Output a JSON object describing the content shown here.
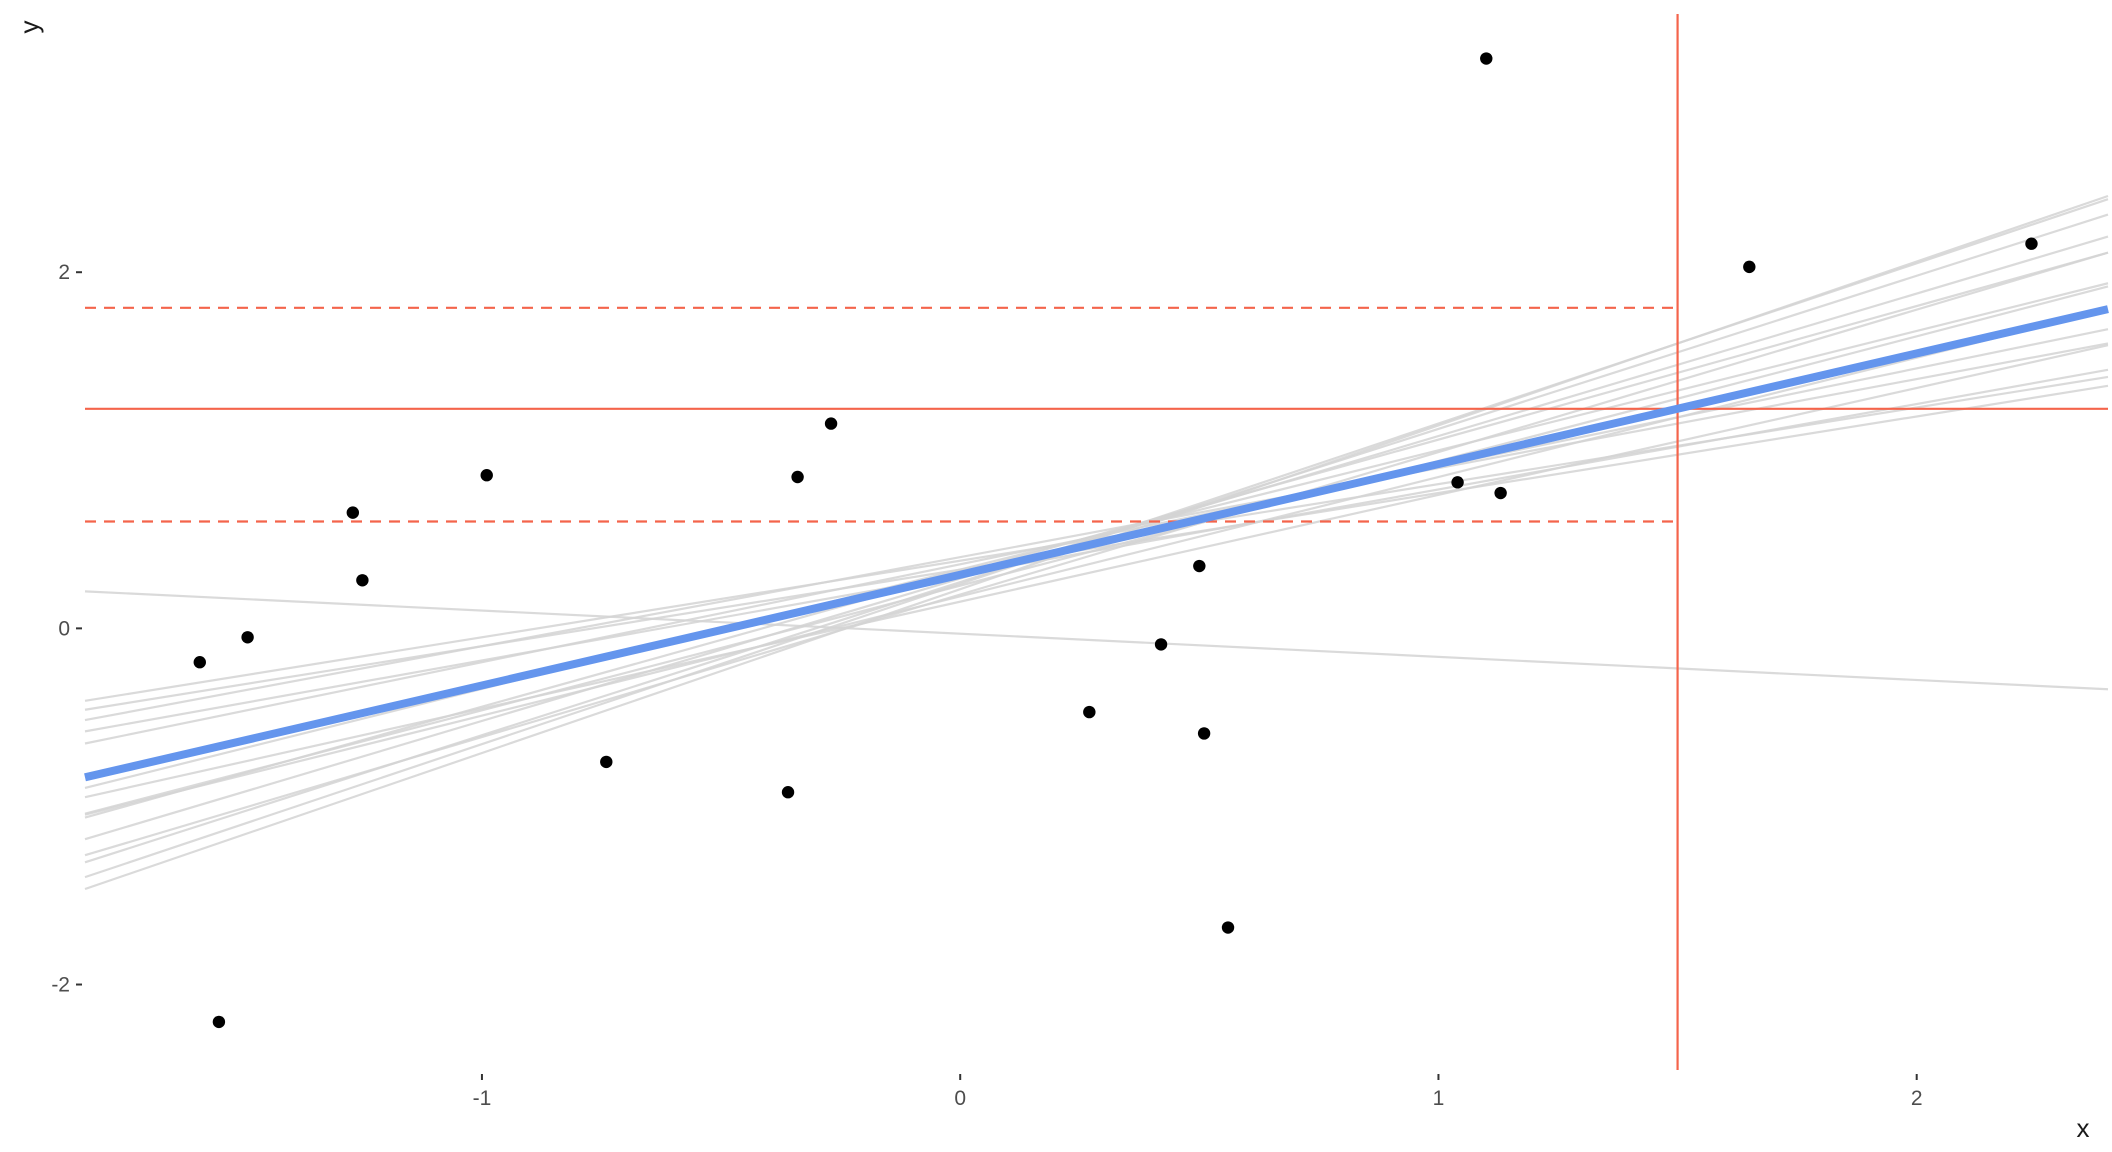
{
  "chart_data": {
    "type": "scatter",
    "title": "",
    "xlabel": "x",
    "ylabel": "y",
    "xlim": [
      -1.83,
      2.4
    ],
    "ylim": [
      -2.48,
      3.45
    ],
    "x_ticks": [
      -1,
      0,
      1,
      2
    ],
    "y_ticks": [
      -2,
      0,
      2
    ],
    "x_tick_labels": [
      "-1",
      "0",
      "1",
      "2"
    ],
    "y_tick_labels": [
      "-2",
      "0",
      "2"
    ],
    "grid": false,
    "legend": "none",
    "colors": {
      "points": "#000000",
      "fit_line": "#6495ed",
      "sample_lines": "#d3d3d3",
      "reference": "#f4644b",
      "tick_text": "#4d4d4d"
    },
    "points": {
      "x": [
        -1.59,
        -1.55,
        -1.49,
        -1.27,
        -1.25,
        -0.99,
        -0.74,
        -0.36,
        -0.34,
        -0.27,
        0.27,
        0.42,
        0.5,
        0.51,
        0.56,
        1.04,
        1.1,
        1.13,
        1.65,
        2.24
      ],
      "y": [
        -0.19,
        -2.21,
        -0.05,
        0.65,
        0.27,
        0.86,
        -0.75,
        -0.92,
        0.85,
        1.15,
        -0.47,
        -0.09,
        0.35,
        -0.59,
        -1.68,
        0.82,
        3.2,
        0.76,
        2.03,
        2.16
      ]
    },
    "fit_line": {
      "intercept": 0.301,
      "slope": 0.6215
    },
    "sample_lines": [
      {
        "intercept": 0.33,
        "slope": 0.67
      },
      {
        "intercept": 0.28,
        "slope": 0.8
      },
      {
        "intercept": 0.26,
        "slope": 0.86
      },
      {
        "intercept": 0.25,
        "slope": 0.9
      },
      {
        "intercept": 0.31,
        "slope": 0.75
      },
      {
        "intercept": 0.22,
        "slope": 0.92
      },
      {
        "intercept": 0.19,
        "slope": 0.8
      },
      {
        "intercept": 0.36,
        "slope": 0.55
      },
      {
        "intercept": 0.4,
        "slope": 0.5
      },
      {
        "intercept": 0.38,
        "slope": 0.43
      },
      {
        "intercept": 0.33,
        "slope": 0.43
      },
      {
        "intercept": 0.3,
        "slope": 0.48
      },
      {
        "intercept": 0.15,
        "slope": 0.6
      },
      {
        "intercept": 0.24,
        "slope": 0.7
      },
      {
        "intercept": 0.18,
        "slope": 0.67
      },
      {
        "intercept": -0.03,
        "slope": -0.13
      }
    ],
    "reference": {
      "x": 1.5,
      "y": 1.233,
      "y_lower": 0.6,
      "y_upper": 1.8
    }
  }
}
